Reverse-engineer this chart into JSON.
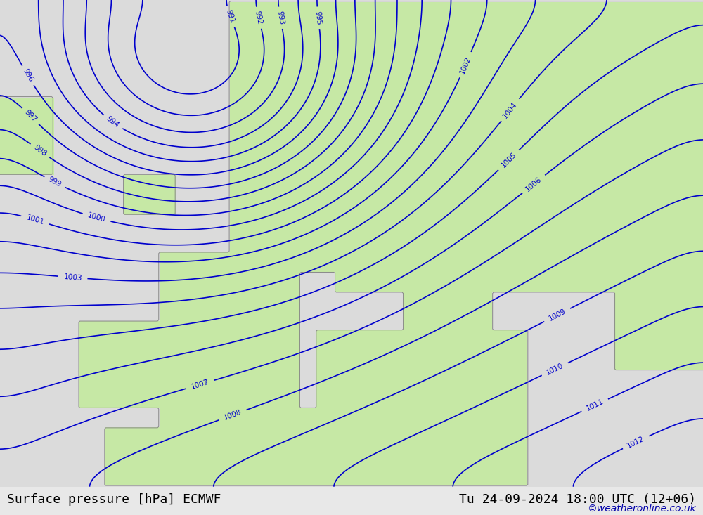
{
  "title_left": "Surface pressure [hPa] ECMWF",
  "title_right": "Tu 24-09-2024 18:00 UTC (12+06)",
  "watermark": "©weatheronline.co.uk",
  "background_color": "#e8e8e8",
  "land_color": "#c8eaaa",
  "sea_color": "#dcdcdc",
  "contour_color": "#0000cc",
  "coast_color": "#888888",
  "text_color": "#000000",
  "watermark_color": "#0000aa",
  "title_fontsize": 13,
  "watermark_fontsize": 10,
  "pressure_min": 990,
  "pressure_max": 1015,
  "pressure_step": 1,
  "figsize": [
    10.0,
    7.33
  ],
  "dpi": 100
}
